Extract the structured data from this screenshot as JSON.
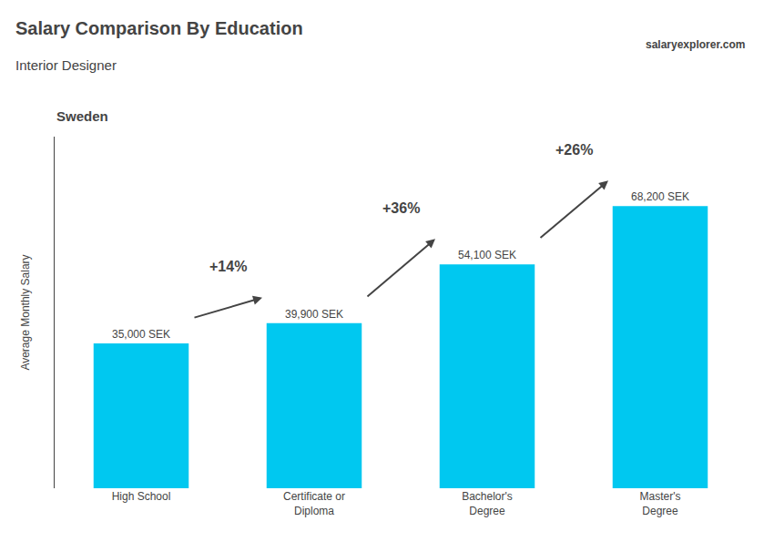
{
  "chart_data": {
    "type": "bar",
    "title": "Salary Comparison By Education",
    "subtitle": "Interior Designer",
    "country": "Sweden",
    "source": [
      "salary",
      "explorer",
      ".com"
    ],
    "ylabel": "Average Monthly Salary",
    "categories": [
      "High School",
      "Certificate or\nDiploma",
      "Bachelor's\nDegree",
      "Master's\nDegree"
    ],
    "values": [
      35000,
      39900,
      54100,
      68200
    ],
    "value_labels": [
      "35,000 SEK",
      "39,900 SEK",
      "54,100 SEK",
      "68,200 SEK"
    ],
    "data_labels": true,
    "annotations": [
      "+14%",
      "+36%",
      "+26%"
    ],
    "color": "#00c8f0",
    "ylim": [
      0,
      85000
    ],
    "grid": false,
    "tick_labels": "x"
  }
}
